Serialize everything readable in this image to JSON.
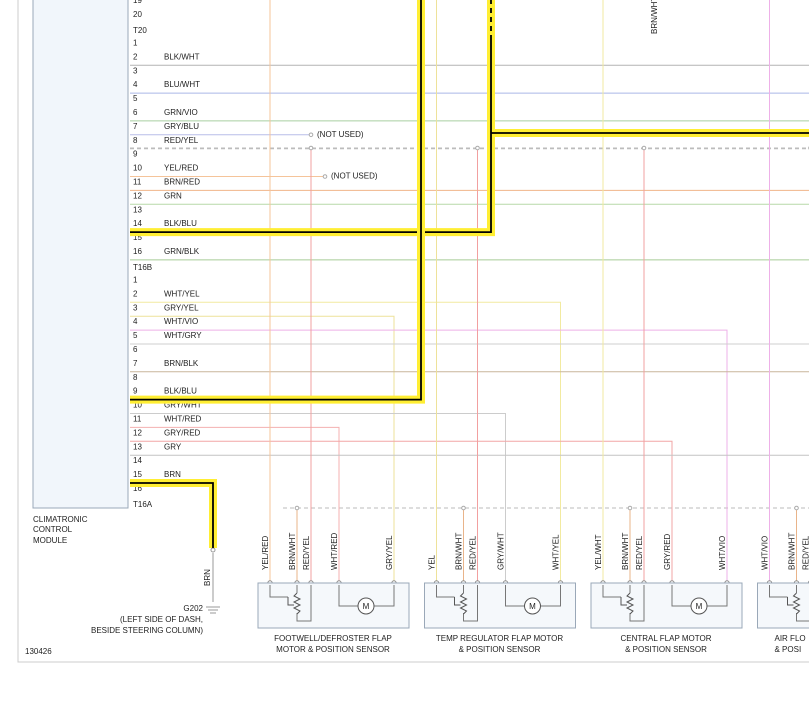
{
  "module": {
    "label": [
      "CLIMATRONIC",
      "CONTROL",
      "MODULE"
    ],
    "connectors": [
      {
        "name": "T20",
        "pins": [
          {
            "num": "19"
          },
          {
            "num": "20"
          }
        ]
      },
      {
        "name": "T16B",
        "pins": [
          {
            "num": "1"
          },
          {
            "num": "2",
            "wire": "BLK/WHT",
            "color": "#b4b4b4"
          },
          {
            "num": "3"
          },
          {
            "num": "4",
            "wire": "BLU/WHT",
            "color": "#aab8e6"
          },
          {
            "num": "5"
          },
          {
            "num": "6",
            "wire": "GRN/VIO",
            "color": "#a9cfa0"
          },
          {
            "num": "7",
            "wire": "GRY/BLU",
            "color": "#b8bde8"
          },
          {
            "num": "8",
            "wire": "RED/YEL",
            "color": "#bdbdbd"
          },
          {
            "num": "9"
          },
          {
            "num": "10",
            "wire": "YEL/RED",
            "color": "#f5c49a"
          },
          {
            "num": "11",
            "wire": "BRN/RED",
            "color": "#f0b48a"
          },
          {
            "num": "12",
            "wire": "GRN",
            "color": "#b7d9a8"
          },
          {
            "num": "13"
          },
          {
            "num": "14",
            "wire": "BLK/BLU",
            "color": "#000000",
            "highlight": true
          },
          {
            "num": "15"
          },
          {
            "num": "16",
            "wire": "GRN/BLK",
            "color": "#a8cc98"
          }
        ]
      },
      {
        "name": "T16A",
        "pins": [
          {
            "num": "1"
          },
          {
            "num": "2",
            "wire": "WHT/YEL",
            "color": "#f2eaa0"
          },
          {
            "num": "3",
            "wire": "GRY/YEL",
            "color": "#eee29a"
          },
          {
            "num": "4",
            "wire": "WHT/VIO",
            "color": "#eeb0e8"
          },
          {
            "num": "5",
            "wire": "WHT/GRY",
            "color": "#cfcfcf"
          },
          {
            "num": "6"
          },
          {
            "num": "7",
            "wire": "BRN/BLK",
            "color": "#c9b59c"
          },
          {
            "num": "8"
          },
          {
            "num": "9",
            "wire": "BLK/BLU",
            "color": "#000000",
            "highlight": true
          },
          {
            "num": "10",
            "wire": "GRY/WHT",
            "color": "#cccccc"
          },
          {
            "num": "11",
            "wire": "WHT/RED",
            "color": "#f4b0b0"
          },
          {
            "num": "12",
            "wire": "GRY/RED",
            "color": "#f2a6a6"
          },
          {
            "num": "13",
            "wire": "GRY",
            "color": "#c4c4c4"
          },
          {
            "num": "14"
          },
          {
            "num": "15",
            "wire": "BRN",
            "color": "#000000",
            "highlight": true
          },
          {
            "num": "16"
          }
        ]
      }
    ]
  },
  "notes": [
    "(NOT USED)",
    "(NOT USED)"
  ],
  "top_wire_label": "BRN/WHT",
  "ground": {
    "wire": "BRN",
    "name": "G202",
    "location": [
      "(LEFT SIDE OF DASH,",
      "BESIDE STEERING COLUMN)"
    ]
  },
  "components": [
    {
      "wires": [
        "YEL/RED",
        "BRN/WHT",
        "RED/YEL",
        "WHT/RED",
        "GRY/YEL"
      ],
      "wire_colors": [
        "#f5c49a",
        "#e9b48a",
        "#f2a0a0",
        "#f4b0b0",
        "#eee29a"
      ],
      "motor": "M",
      "name": [
        "FOOTWELL/DEFROSTER FLAP",
        "MOTOR & POSITION SENSOR"
      ]
    },
    {
      "wires": [
        "YEL",
        "BRN/WHT",
        "RED/YEL",
        "GRY/WHT",
        "WHT/YEL"
      ],
      "wire_colors": [
        "#eee29a",
        "#e9b48a",
        "#f2a0a0",
        "#cccccc",
        "#f2eaa0"
      ],
      "motor": "M",
      "name": [
        "TEMP REGULATOR FLAP MOTOR",
        "& POSITION SENSOR"
      ]
    },
    {
      "wires": [
        "YEL/WHT",
        "BRN/WHT",
        "RED/YEL",
        "GRY/RED",
        "WHT/VIO"
      ],
      "wire_colors": [
        "#f2eaa0",
        "#e9b48a",
        "#f2a0a0",
        "#f2a6a6",
        "#eeb0e8"
      ],
      "motor": "M",
      "name": [
        "CENTRAL FLAP MOTOR",
        "& POSITION SENSOR"
      ]
    },
    {
      "wires": [
        "WHT/VIO",
        "BRN/WHT",
        "RED/YEL"
      ],
      "wire_colors": [
        "#eeb0e8",
        "#e9b48a",
        "#f2a0a0"
      ],
      "name": [
        "AIR FLO",
        "& POSI"
      ]
    }
  ],
  "figure_id": "130426"
}
